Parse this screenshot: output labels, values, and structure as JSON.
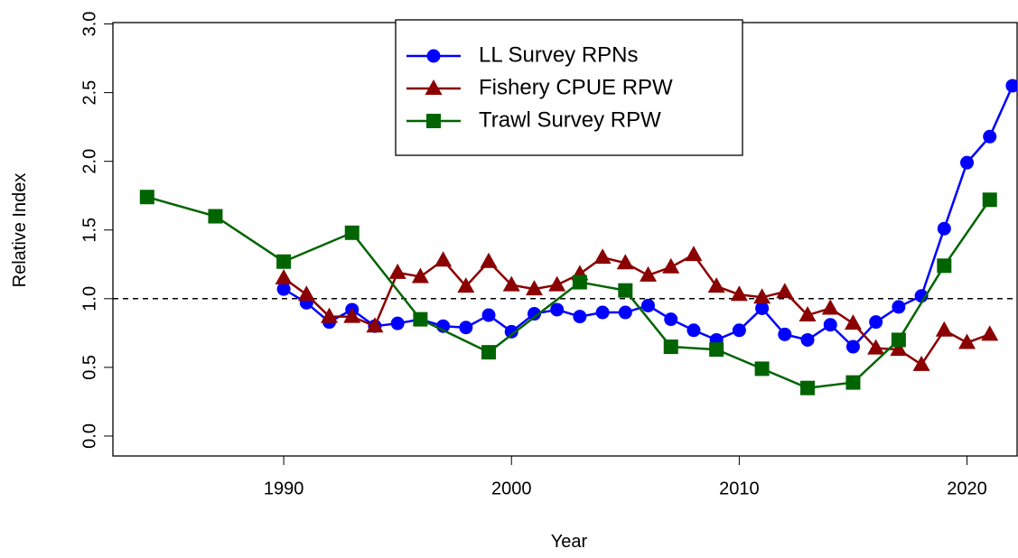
{
  "chart_data": {
    "type": "line",
    "x_label": "Year",
    "y_label": "Relative Index",
    "xlim": [
      1982.5,
      2022.2
    ],
    "ylim": [
      -0.145,
      3.01
    ],
    "xticks": [
      1990,
      2000,
      2010,
      2020
    ],
    "yticks": [
      {
        "value": 0,
        "label": "0.0"
      },
      0.5,
      {
        "value": 1,
        "label": "1.0"
      },
      1.5,
      {
        "value": 2,
        "label": "2.0"
      },
      2.5,
      {
        "value": 3,
        "label": "3.0"
      }
    ],
    "reference_line": 1,
    "legend_position": "top",
    "series": [
      {
        "name": "LL Survey RPNs",
        "color": "#0000ff",
        "marker": "circle",
        "x": [
          1990,
          1991,
          1992,
          1993,
          1994,
          1995,
          1996,
          1997,
          1998,
          1999,
          2000,
          2001,
          2002,
          2003,
          2004,
          2005,
          2006,
          2007,
          2008,
          2009,
          2010,
          2011,
          2012,
          2013,
          2014,
          2015,
          2016,
          2017,
          2018,
          2019,
          2020,
          2021,
          2022
        ],
        "values": [
          1.07,
          0.97,
          0.83,
          0.92,
          0.8,
          0.82,
          0.85,
          0.8,
          0.79,
          0.88,
          0.76,
          0.89,
          0.92,
          0.87,
          0.9,
          0.9,
          0.95,
          0.85,
          0.77,
          0.7,
          0.77,
          0.93,
          0.74,
          0.7,
          0.81,
          0.65,
          0.83,
          0.94,
          1.02,
          1.51,
          1.99,
          2.18,
          2.55
        ]
      },
      {
        "name": "Fishery CPUE RPW",
        "color": "#8b0000",
        "marker": "triangle",
        "x": [
          1990,
          1991,
          1992,
          1993,
          1994,
          1995,
          1996,
          1997,
          1998,
          1999,
          2000,
          2001,
          2002,
          2003,
          2004,
          2005,
          2006,
          2007,
          2008,
          2009,
          2010,
          2011,
          2012,
          2013,
          2014,
          2015,
          2016,
          2017,
          2018,
          2019,
          2020,
          2021
        ],
        "values": [
          1.15,
          1.03,
          0.87,
          0.87,
          0.8,
          1.19,
          1.16,
          1.28,
          1.09,
          1.27,
          1.1,
          1.07,
          1.1,
          1.18,
          1.3,
          1.26,
          1.17,
          1.23,
          1.32,
          1.09,
          1.03,
          1.01,
          1.05,
          0.88,
          0.93,
          0.82,
          0.64,
          0.63,
          0.52,
          0.77,
          0.68,
          0.74
        ]
      },
      {
        "name": "Trawl Survey RPW",
        "color": "#006400",
        "marker": "square",
        "x": [
          1984,
          1987,
          1990,
          1993,
          1996,
          1999,
          2003,
          2005,
          2007,
          2009,
          2011,
          2013,
          2015,
          2017,
          2019,
          2021
        ],
        "values": [
          1.74,
          1.6,
          1.27,
          1.48,
          0.85,
          0.61,
          1.12,
          1.06,
          0.65,
          0.63,
          0.49,
          0.35,
          0.39,
          0.7,
          1.24,
          1.72
        ]
      }
    ]
  }
}
